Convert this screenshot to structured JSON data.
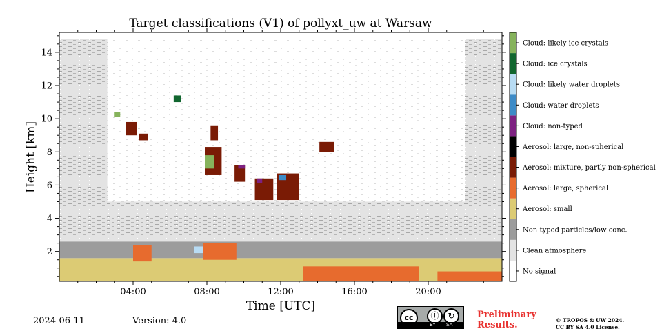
{
  "chart_data": {
    "type": "heatmap",
    "title": "Target classifications (V1) of pollyxt_uw at Warsaw",
    "xlabel": "Time [UTC]",
    "ylabel": "Height [km]",
    "xlim_hours": [
      0,
      24
    ],
    "ylim_km": [
      0.2,
      15.2
    ],
    "x_ticks": [
      "04:00",
      "08:00",
      "12:00",
      "16:00",
      "20:00"
    ],
    "x_tick_hours": [
      4,
      8,
      12,
      16,
      20
    ],
    "y_ticks": [
      "2",
      "4",
      "6",
      "8",
      "10",
      "12",
      "14"
    ],
    "y_tick_values": [
      2,
      4,
      6,
      8,
      10,
      12,
      14
    ],
    "colorbar": [
      {
        "label": "No signal",
        "color": "#ffffff"
      },
      {
        "label": "Clean atmosphere",
        "color": "#e3e3e3"
      },
      {
        "label": "Non-typed particles/low conc.",
        "color": "#9c9c9c"
      },
      {
        "label": "Aerosol: small",
        "color": "#dccb74"
      },
      {
        "label": "Aerosol: large, spherical",
        "color": "#e76b2e"
      },
      {
        "label": "Aerosol: mixture, partly non-spherical",
        "color": "#7a1b05"
      },
      {
        "label": "Aerosol: large, non-spherical",
        "color": "#000000"
      },
      {
        "label": "Cloud: non-typed",
        "color": "#7d2181"
      },
      {
        "label": "Cloud: water droplets",
        "color": "#3d8bc7"
      },
      {
        "label": "Cloud: likely water droplets",
        "color": "#b8dcf4"
      },
      {
        "label": "Cloud: ice crystals",
        "color": "#11662f"
      },
      {
        "label": "Cloud: likely ice crystals",
        "color": "#86b35c"
      }
    ],
    "regions": [
      {
        "class": "Aerosol: small",
        "t0": 0.0,
        "t1": 24.0,
        "h0": 0.2,
        "h1": 1.6
      },
      {
        "class": "Aerosol: large, spherical",
        "t0": 13.2,
        "t1": 19.5,
        "h0": 0.2,
        "h1": 1.1
      },
      {
        "class": "Aerosol: large, spherical",
        "t0": 20.5,
        "t1": 24.0,
        "h0": 0.2,
        "h1": 0.8
      },
      {
        "class": "Non-typed particles/low conc.",
        "t0": 0.0,
        "t1": 24.0,
        "h0": 1.6,
        "h1": 2.6
      },
      {
        "class": "Clean atmosphere",
        "t0": 0.0,
        "t1": 24.0,
        "h0": 2.6,
        "h1": 14.8
      },
      {
        "class": "No signal",
        "t0": 2.6,
        "t1": 22.0,
        "h0": 5.0,
        "h1": 14.8
      },
      {
        "class": "Cloud: ice crystals",
        "t0": 6.2,
        "t1": 6.6,
        "h0": 11.0,
        "h1": 11.4
      },
      {
        "class": "Cloud: likely ice crystals",
        "t0": 3.0,
        "t1": 3.3,
        "h0": 10.1,
        "h1": 10.4
      },
      {
        "class": "Aerosol: mixture, partly non-spherical",
        "t0": 3.6,
        "t1": 4.2,
        "h0": 9.0,
        "h1": 9.8
      },
      {
        "class": "Aerosol: mixture, partly non-spherical",
        "t0": 4.3,
        "t1": 4.8,
        "h0": 8.7,
        "h1": 9.1
      },
      {
        "class": "Aerosol: mixture, partly non-spherical",
        "t0": 7.9,
        "t1": 8.8,
        "h0": 6.6,
        "h1": 8.3
      },
      {
        "class": "Cloud: likely ice crystals",
        "t0": 7.9,
        "t1": 8.4,
        "h0": 7.0,
        "h1": 7.8
      },
      {
        "class": "Aerosol: mixture, partly non-spherical",
        "t0": 8.2,
        "t1": 8.6,
        "h0": 8.7,
        "h1": 9.6
      },
      {
        "class": "Aerosol: mixture, partly non-spherical",
        "t0": 9.5,
        "t1": 10.1,
        "h0": 6.2,
        "h1": 7.2
      },
      {
        "class": "Cloud: non-typed",
        "t0": 9.7,
        "t1": 10.1,
        "h0": 7.0,
        "h1": 7.2
      },
      {
        "class": "Aerosol: mixture, partly non-spherical",
        "t0": 10.6,
        "t1": 11.6,
        "h0": 5.1,
        "h1": 6.4
      },
      {
        "class": "Cloud: non-typed",
        "t0": 10.7,
        "t1": 11.0,
        "h0": 6.1,
        "h1": 6.4
      },
      {
        "class": "Aerosol: mixture, partly non-spherical",
        "t0": 11.8,
        "t1": 13.0,
        "h0": 5.1,
        "h1": 6.7
      },
      {
        "class": "Cloud: water droplets",
        "t0": 11.9,
        "t1": 12.3,
        "h0": 6.3,
        "h1": 6.6
      },
      {
        "class": "Aerosol: mixture, partly non-spherical",
        "t0": 14.1,
        "t1": 14.9,
        "h0": 8.0,
        "h1": 8.6
      },
      {
        "class": "Aerosol: large, spherical",
        "t0": 7.8,
        "t1": 9.6,
        "h0": 1.5,
        "h1": 2.5
      },
      {
        "class": "Aerosol: large, spherical",
        "t0": 4.0,
        "t1": 5.0,
        "h0": 1.4,
        "h1": 2.4
      },
      {
        "class": "Cloud: likely water droplets",
        "t0": 7.3,
        "t1": 7.8,
        "h0": 1.9,
        "h1": 2.3
      }
    ]
  },
  "footer": {
    "date": "2024-06-11",
    "version": "Version: 4.0",
    "cc_text": "cc",
    "cc_by": "BY",
    "cc_sa": "SA",
    "preliminary_line1": "Preliminary",
    "preliminary_line2": "Results.",
    "copyright_line1": "© TROPOS & UW 2024.",
    "copyright_line2": "CC BY SA 4.0 License."
  }
}
